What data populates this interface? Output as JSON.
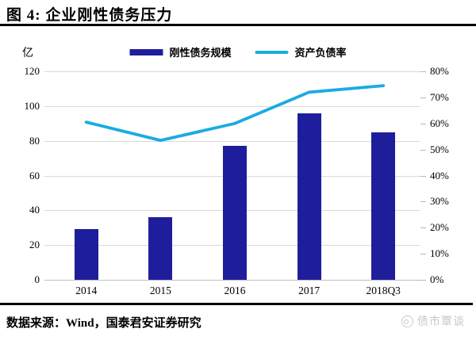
{
  "header": {
    "title": "图 4: 企业刚性债务压力"
  },
  "chart_data": {
    "type": "combo-bar-line",
    "categories": [
      "2014",
      "2015",
      "2016",
      "2017",
      "2018Q3"
    ],
    "series": [
      {
        "name": "刚性债务规模",
        "type": "bar",
        "axis": "left",
        "color": "#1e1e9c",
        "values": [
          29,
          36,
          77,
          96,
          85
        ]
      },
      {
        "name": "资产负债率",
        "type": "line",
        "axis": "right",
        "color": "#1aabe3",
        "values": [
          60.5,
          53.5,
          60,
          72,
          74.5
        ]
      }
    ],
    "left_axis": {
      "unit": "亿",
      "min": 0,
      "max": 120,
      "step": 20,
      "tick_labels": [
        "0",
        "20",
        "40",
        "60",
        "80",
        "100",
        "120"
      ]
    },
    "right_axis": {
      "min": 0,
      "max": 80,
      "step": 10,
      "suffix": "%",
      "tick_labels": [
        "0%",
        "10%",
        "20%",
        "30%",
        "40%",
        "50%",
        "60%",
        "70%",
        "80%"
      ]
    },
    "grid": true,
    "legend_position": "top-center"
  },
  "footer": {
    "source": "数据来源：Wind，国泰君安证券研究",
    "watermark": "债市覃谈"
  }
}
